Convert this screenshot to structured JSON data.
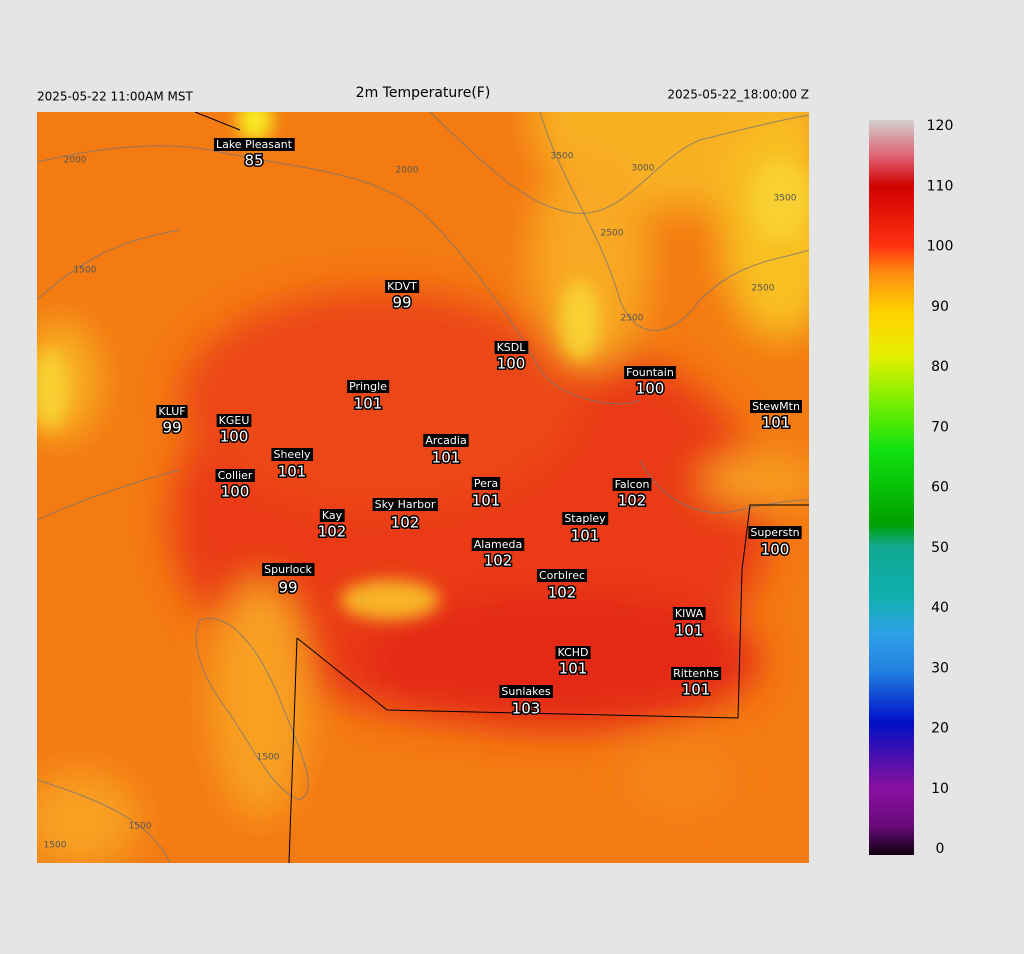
{
  "header": {
    "title": "2m Temperature(F)",
    "local_time": "2025-05-22 11:00AM MST",
    "valid_time": "2025-05-22_18:00:00 Z"
  },
  "stations": [
    {
      "name": "Lake Pleasant",
      "value": 85
    },
    {
      "name": "KDVT",
      "value": 99
    },
    {
      "name": "KSDL",
      "value": 100
    },
    {
      "name": "Fountain",
      "value": 100
    },
    {
      "name": "Pringle",
      "value": 101
    },
    {
      "name": "KLUF",
      "value": 99
    },
    {
      "name": "KGEU",
      "value": 100
    },
    {
      "name": "StewMtn",
      "value": 101
    },
    {
      "name": "Arcadia",
      "value": 101
    },
    {
      "name": "Sheely",
      "value": 101
    },
    {
      "name": "Collier",
      "value": 100
    },
    {
      "name": "Pera",
      "value": 101
    },
    {
      "name": "Falcon",
      "value": 102
    },
    {
      "name": "Sky Harbor",
      "value": 102
    },
    {
      "name": "Kay",
      "value": 102
    },
    {
      "name": "Stapley",
      "value": 101
    },
    {
      "name": "Superstn",
      "value": 100
    },
    {
      "name": "Alameda",
      "value": 102
    },
    {
      "name": "Corblrec",
      "value": 102
    },
    {
      "name": "Spurlock",
      "value": 99
    },
    {
      "name": "KIWA",
      "value": 101
    },
    {
      "name": "KCHD",
      "value": 101
    },
    {
      "name": "Rittenhs",
      "value": 101
    },
    {
      "name": "Sunlakes",
      "value": 103
    }
  ],
  "contour_labels": [
    2000,
    2000,
    3500,
    3000,
    3500,
    2500,
    2500,
    2500,
    1500,
    1500,
    1500,
    1500
  ],
  "colorbar": {
    "lim": [
      0,
      120
    ],
    "ticks": [
      0,
      10,
      20,
      30,
      40,
      50,
      60,
      70,
      80,
      90,
      100,
      110,
      120
    ]
  }
}
